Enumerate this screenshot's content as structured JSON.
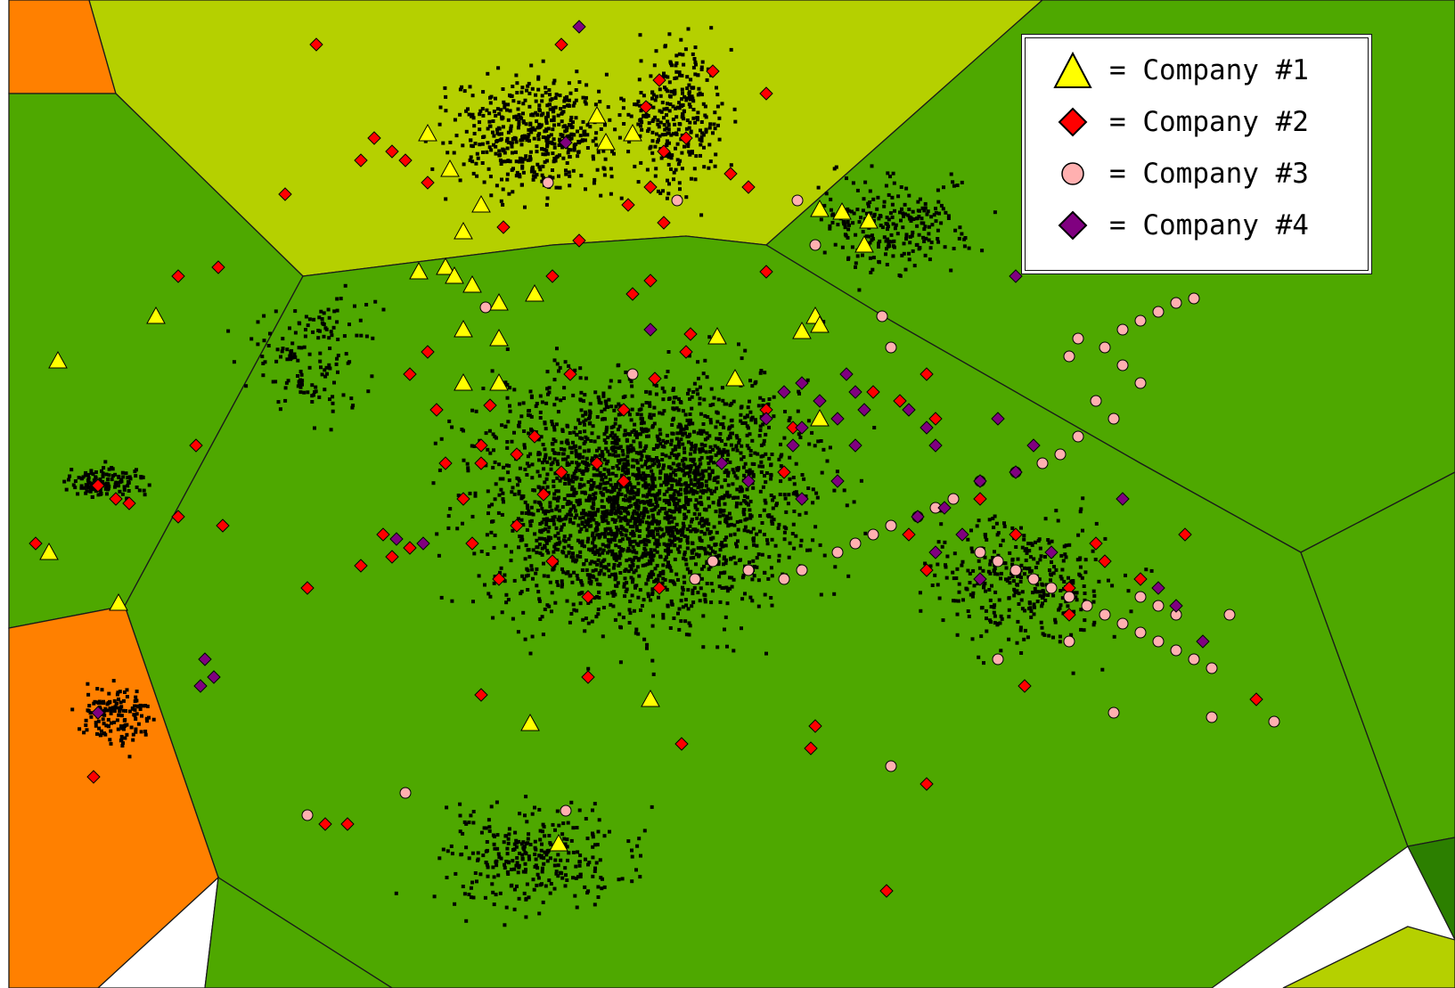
{
  "colors": {
    "light_green": "#b5d000",
    "mid_green": "#4ea800",
    "dark_green": "#2c7f00",
    "orange": "#ff8000",
    "white": "#ffffff",
    "dot": "#000000"
  },
  "legend": {
    "items": [
      {
        "marker": "triangle",
        "color": "#ffff00",
        "label": "= Company #1"
      },
      {
        "marker": "diamond",
        "color": "#ff0000",
        "label": "= Company #2"
      },
      {
        "marker": "circle",
        "color": "#ffb0b0",
        "label": "= Company #3"
      },
      {
        "marker": "diamond",
        "color": "#800080",
        "label": "= Company #4"
      }
    ]
  },
  "chart_data": {
    "type": "scatter",
    "title": "",
    "xlabel": "",
    "ylabel": "",
    "grid": false,
    "legend_position": "top-right",
    "series": [
      {
        "name": "= Company #1",
        "marker": "triangle",
        "color": "#ffff00",
        "points": [
          [
            480,
            150
          ],
          [
            505,
            190
          ],
          [
            540,
            230
          ],
          [
            520,
            260
          ],
          [
            500,
            300
          ],
          [
            530,
            320
          ],
          [
            560,
            340
          ],
          [
            600,
            330
          ],
          [
            520,
            370
          ],
          [
            560,
            380
          ],
          [
            520,
            430
          ],
          [
            560,
            430
          ],
          [
            670,
            130
          ],
          [
            680,
            160
          ],
          [
            710,
            150
          ],
          [
            920,
            235
          ],
          [
            945,
            238
          ],
          [
            975,
            248
          ],
          [
            970,
            275
          ],
          [
            915,
            355
          ],
          [
            920,
            365
          ],
          [
            900,
            372
          ],
          [
            805,
            378
          ],
          [
            825,
            425
          ],
          [
            920,
            470
          ],
          [
            175,
            355
          ],
          [
            65,
            405
          ],
          [
            55,
            620
          ],
          [
            133,
            677
          ],
          [
            595,
            812
          ],
          [
            730,
            785
          ],
          [
            627,
            947
          ],
          [
            470,
            305
          ],
          [
            510,
            310
          ]
        ]
      },
      {
        "name": "= Company #2",
        "marker": "diamond",
        "color": "#ff0000",
        "points": [
          [
            630,
            50
          ],
          [
            740,
            90
          ],
          [
            800,
            80
          ],
          [
            860,
            105
          ],
          [
            725,
            120
          ],
          [
            745,
            170
          ],
          [
            770,
            155
          ],
          [
            730,
            210
          ],
          [
            705,
            230
          ],
          [
            745,
            250
          ],
          [
            820,
            195
          ],
          [
            840,
            210
          ],
          [
            420,
            155
          ],
          [
            440,
            170
          ],
          [
            405,
            180
          ],
          [
            455,
            180
          ],
          [
            320,
            218
          ],
          [
            480,
            205
          ],
          [
            565,
            255
          ],
          [
            650,
            270
          ],
          [
            620,
            310
          ],
          [
            730,
            315
          ],
          [
            710,
            330
          ],
          [
            860,
            305
          ],
          [
            775,
            375
          ],
          [
            770,
            395
          ],
          [
            735,
            425
          ],
          [
            480,
            395
          ],
          [
            460,
            420
          ],
          [
            490,
            460
          ],
          [
            550,
            455
          ],
          [
            640,
            420
          ],
          [
            700,
            460
          ],
          [
            600,
            490
          ],
          [
            540,
            500
          ],
          [
            500,
            520
          ],
          [
            540,
            520
          ],
          [
            580,
            510
          ],
          [
            630,
            530
          ],
          [
            670,
            520
          ],
          [
            700,
            540
          ],
          [
            610,
            555
          ],
          [
            520,
            560
          ],
          [
            580,
            590
          ],
          [
            530,
            610
          ],
          [
            620,
            630
          ],
          [
            560,
            650
          ],
          [
            660,
            670
          ],
          [
            430,
            600
          ],
          [
            440,
            625
          ],
          [
            460,
            615
          ],
          [
            405,
            635
          ],
          [
            345,
            660
          ],
          [
            250,
            590
          ],
          [
            200,
            580
          ],
          [
            110,
            545
          ],
          [
            130,
            560
          ],
          [
            145,
            565
          ],
          [
            40,
            610
          ],
          [
            200,
            310
          ],
          [
            245,
            300
          ],
          [
            220,
            500
          ],
          [
            860,
            460
          ],
          [
            890,
            480
          ],
          [
            880,
            530
          ],
          [
            980,
            440
          ],
          [
            1010,
            450
          ],
          [
            1040,
            420
          ],
          [
            1050,
            470
          ],
          [
            1020,
            600
          ],
          [
            1040,
            640
          ],
          [
            1100,
            560
          ],
          [
            1140,
            600
          ],
          [
            1230,
            610
          ],
          [
            1240,
            630
          ],
          [
            1200,
            660
          ],
          [
            1200,
            690
          ],
          [
            1280,
            650
          ],
          [
            1330,
            600
          ],
          [
            1150,
            770
          ],
          [
            1410,
            785
          ],
          [
            740,
            660
          ],
          [
            540,
            780
          ],
          [
            765,
            835
          ],
          [
            915,
            815
          ],
          [
            910,
            840
          ],
          [
            1040,
            880
          ],
          [
            995,
            1000
          ],
          [
            660,
            760
          ],
          [
            365,
            925
          ],
          [
            390,
            925
          ],
          [
            105,
            872
          ],
          [
            355,
            50
          ]
        ]
      },
      {
        "name": "= Company #3",
        "marker": "circle",
        "color": "#ffb0b0",
        "points": [
          [
            615,
            205
          ],
          [
            760,
            225
          ],
          [
            895,
            225
          ],
          [
            915,
            275
          ],
          [
            545,
            345
          ],
          [
            710,
            420
          ],
          [
            990,
            355
          ],
          [
            1000,
            390
          ],
          [
            1200,
            400
          ],
          [
            1210,
            380
          ],
          [
            1240,
            390
          ],
          [
            1260,
            370
          ],
          [
            1280,
            360
          ],
          [
            1300,
            350
          ],
          [
            1320,
            340
          ],
          [
            1340,
            335
          ],
          [
            1260,
            410
          ],
          [
            1280,
            430
          ],
          [
            1230,
            450
          ],
          [
            1250,
            470
          ],
          [
            1210,
            490
          ],
          [
            1190,
            510
          ],
          [
            1170,
            520
          ],
          [
            1140,
            530
          ],
          [
            1100,
            540
          ],
          [
            1070,
            560
          ],
          [
            1050,
            570
          ],
          [
            1030,
            580
          ],
          [
            1000,
            590
          ],
          [
            980,
            600
          ],
          [
            960,
            610
          ],
          [
            940,
            620
          ],
          [
            900,
            640
          ],
          [
            880,
            650
          ],
          [
            840,
            640
          ],
          [
            800,
            630
          ],
          [
            780,
            650
          ],
          [
            1100,
            620
          ],
          [
            1120,
            630
          ],
          [
            1140,
            640
          ],
          [
            1160,
            650
          ],
          [
            1180,
            660
          ],
          [
            1200,
            670
          ],
          [
            1220,
            680
          ],
          [
            1240,
            690
          ],
          [
            1260,
            700
          ],
          [
            1280,
            710
          ],
          [
            1300,
            720
          ],
          [
            1320,
            730
          ],
          [
            1340,
            740
          ],
          [
            1360,
            750
          ],
          [
            1300,
            680
          ],
          [
            1320,
            690
          ],
          [
            1280,
            670
          ],
          [
            1380,
            690
          ],
          [
            1120,
            740
          ],
          [
            1200,
            720
          ],
          [
            1250,
            800
          ],
          [
            1360,
            805
          ],
          [
            1430,
            810
          ],
          [
            1000,
            860
          ],
          [
            455,
            890
          ],
          [
            345,
            915
          ],
          [
            635,
            910
          ]
        ]
      },
      {
        "name": "= Company #4",
        "marker": "diamond",
        "color": "#800080",
        "points": [
          [
            650,
            30
          ],
          [
            635,
            160
          ],
          [
            730,
            370
          ],
          [
            950,
            420
          ],
          [
            960,
            440
          ],
          [
            970,
            460
          ],
          [
            940,
            470
          ],
          [
            920,
            450
          ],
          [
            900,
            430
          ],
          [
            880,
            440
          ],
          [
            900,
            480
          ],
          [
            860,
            470
          ],
          [
            890,
            500
          ],
          [
            960,
            500
          ],
          [
            1020,
            460
          ],
          [
            1040,
            480
          ],
          [
            1050,
            500
          ],
          [
            940,
            540
          ],
          [
            900,
            560
          ],
          [
            840,
            540
          ],
          [
            810,
            520
          ],
          [
            1120,
            470
          ],
          [
            1160,
            500
          ],
          [
            1140,
            530
          ],
          [
            1100,
            540
          ],
          [
            1060,
            570
          ],
          [
            1030,
            580
          ],
          [
            1080,
            600
          ],
          [
            1050,
            620
          ],
          [
            1100,
            650
          ],
          [
            1180,
            620
          ],
          [
            1260,
            560
          ],
          [
            1300,
            660
          ],
          [
            1320,
            680
          ],
          [
            1350,
            720
          ],
          [
            445,
            605
          ],
          [
            475,
            610
          ],
          [
            230,
            740
          ],
          [
            240,
            760
          ],
          [
            225,
            770
          ],
          [
            110,
            800
          ],
          [
            1140,
            310
          ]
        ]
      }
    ]
  }
}
